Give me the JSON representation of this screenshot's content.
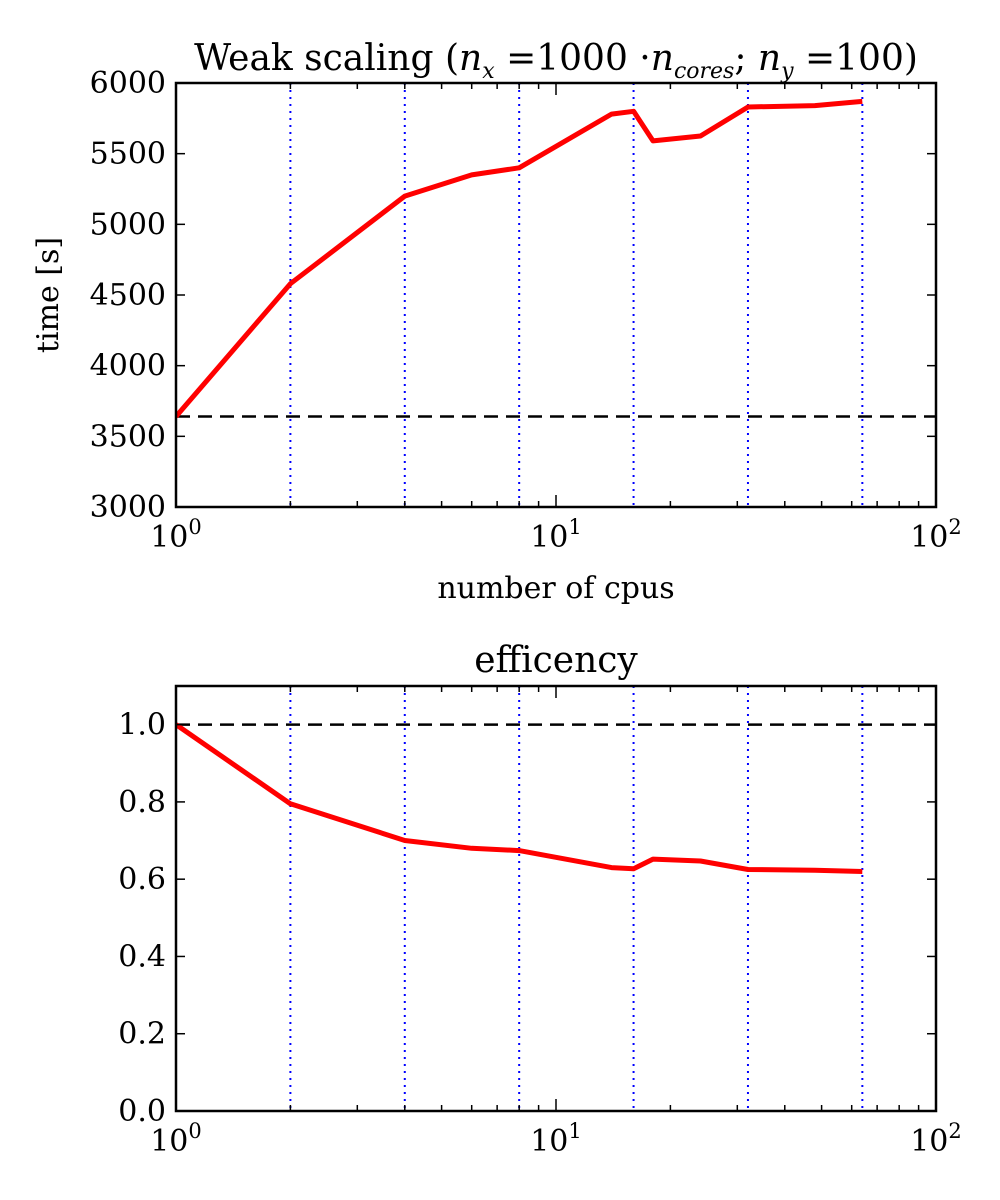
{
  "chart_data": [
    {
      "type": "line",
      "title": {
        "prefix": "Weak scaling (",
        "nx_var": "n",
        "nx_sub": "x",
        "nx_eq": " =1000 ·",
        "ncores_var": "n",
        "ncores_sub": "cores",
        "ny_sep": "; ",
        "ny_var": "n",
        "ny_sub": "y",
        "suffix": " =100)"
      },
      "xlabel": "number of cpus",
      "ylabel": "time [s]",
      "xscale": "log",
      "xlim": [
        1,
        100
      ],
      "ylim": [
        3000,
        6000
      ],
      "yticks": [
        3000,
        3500,
        4000,
        4500,
        5000,
        5500,
        6000
      ],
      "xticks": [
        {
          "value": 1,
          "base": "10",
          "exp": "0"
        },
        {
          "value": 10,
          "base": "10",
          "exp": "1"
        },
        {
          "value": 100,
          "base": "10",
          "exp": "2"
        }
      ],
      "vlines": [
        2,
        4,
        8,
        16,
        32,
        64
      ],
      "hline": 3640,
      "series": [
        {
          "color": "#ff0000",
          "x": [
            1,
            2,
            4,
            6,
            8,
            14,
            16,
            18,
            24,
            32,
            48,
            64
          ],
          "y": [
            3640,
            4580,
            5200,
            5350,
            5400,
            5780,
            5800,
            5590,
            5625,
            5830,
            5840,
            5870
          ]
        }
      ],
      "colors": {
        "line": "#ff0000",
        "vline": "#0000ff",
        "hline": "#000000"
      }
    },
    {
      "type": "line",
      "title": "efficency",
      "xlabel": "",
      "ylabel": "",
      "xscale": "log",
      "xlim": [
        1,
        100
      ],
      "ylim": [
        0,
        1.1
      ],
      "yticks": [
        0.0,
        0.2,
        0.4,
        0.6,
        0.8,
        1.0
      ],
      "ytick_labels": [
        "0.0",
        "0.2",
        "0.4",
        "0.6",
        "0.8",
        "1.0"
      ],
      "xticks": [
        {
          "value": 1,
          "base": "10",
          "exp": "0"
        },
        {
          "value": 10,
          "base": "10",
          "exp": "1"
        },
        {
          "value": 100,
          "base": "10",
          "exp": "2"
        }
      ],
      "vlines": [
        2,
        4,
        8,
        16,
        32,
        64
      ],
      "hline": 1.0,
      "series": [
        {
          "color": "#ff0000",
          "x": [
            1,
            2,
            4,
            6,
            8,
            14,
            16,
            18,
            24,
            32,
            48,
            64
          ],
          "y": [
            1.0,
            0.795,
            0.7,
            0.68,
            0.674,
            0.63,
            0.627,
            0.652,
            0.647,
            0.625,
            0.623,
            0.62
          ]
        }
      ],
      "colors": {
        "line": "#ff0000",
        "vline": "#0000ff",
        "hline": "#000000"
      }
    }
  ]
}
